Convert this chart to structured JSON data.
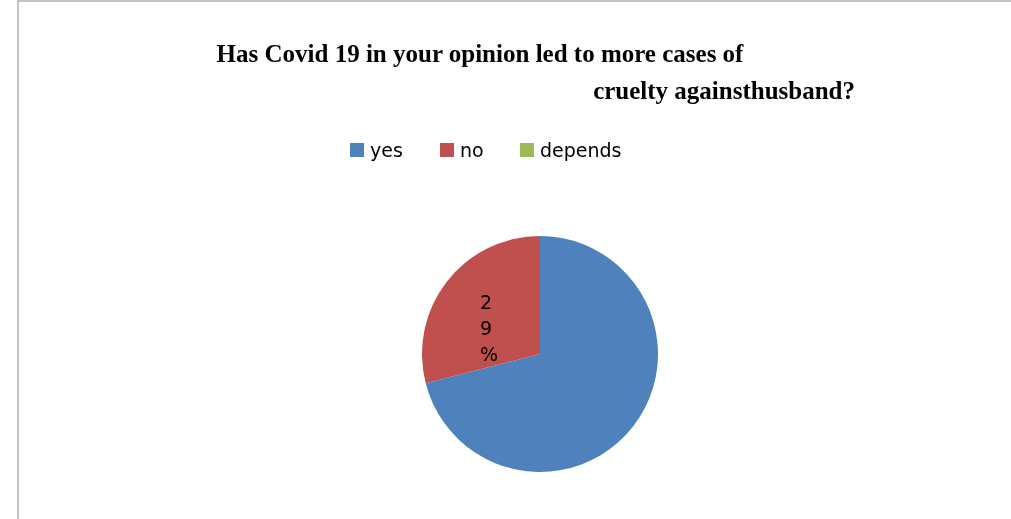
{
  "chart_data": {
    "type": "pie",
    "title": "Has Covid 19 in your opinion led to more cases of\ncruelty againsthusband?",
    "categories": [
      "yes",
      "no",
      "depends"
    ],
    "values": [
      71,
      29,
      0
    ],
    "colors": [
      "#4f81bd",
      "#c0504d",
      "#9bbb59"
    ],
    "value_labels": [
      null,
      "29%",
      null
    ],
    "legend": "top"
  }
}
